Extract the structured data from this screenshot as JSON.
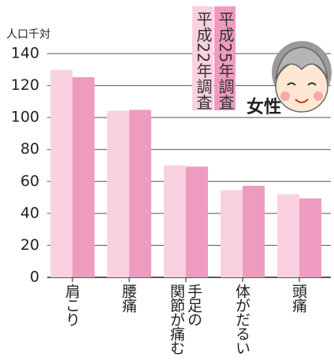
{
  "chart_data": {
    "type": "bar",
    "y_label": "人口千対",
    "annotation": "女性",
    "categories": [
      "肩こり",
      "腰痛",
      "手足の\n関節が痛む",
      "体がだるい",
      "頭痛"
    ],
    "series": [
      {
        "name": "平成22年調査",
        "color": "#f9d1e1",
        "values": [
          129.8,
          104.2,
          70,
          54.6,
          52
        ]
      },
      {
        "name": "平成25年調査",
        "color": "#ef9bbf",
        "values": [
          125.2,
          104.8,
          69.3,
          57.3,
          49.4
        ]
      }
    ],
    "ylim": [
      0,
      140
    ],
    "yticks": [
      0,
      20,
      40,
      60,
      80,
      100,
      120,
      140
    ],
    "grid": true
  }
}
